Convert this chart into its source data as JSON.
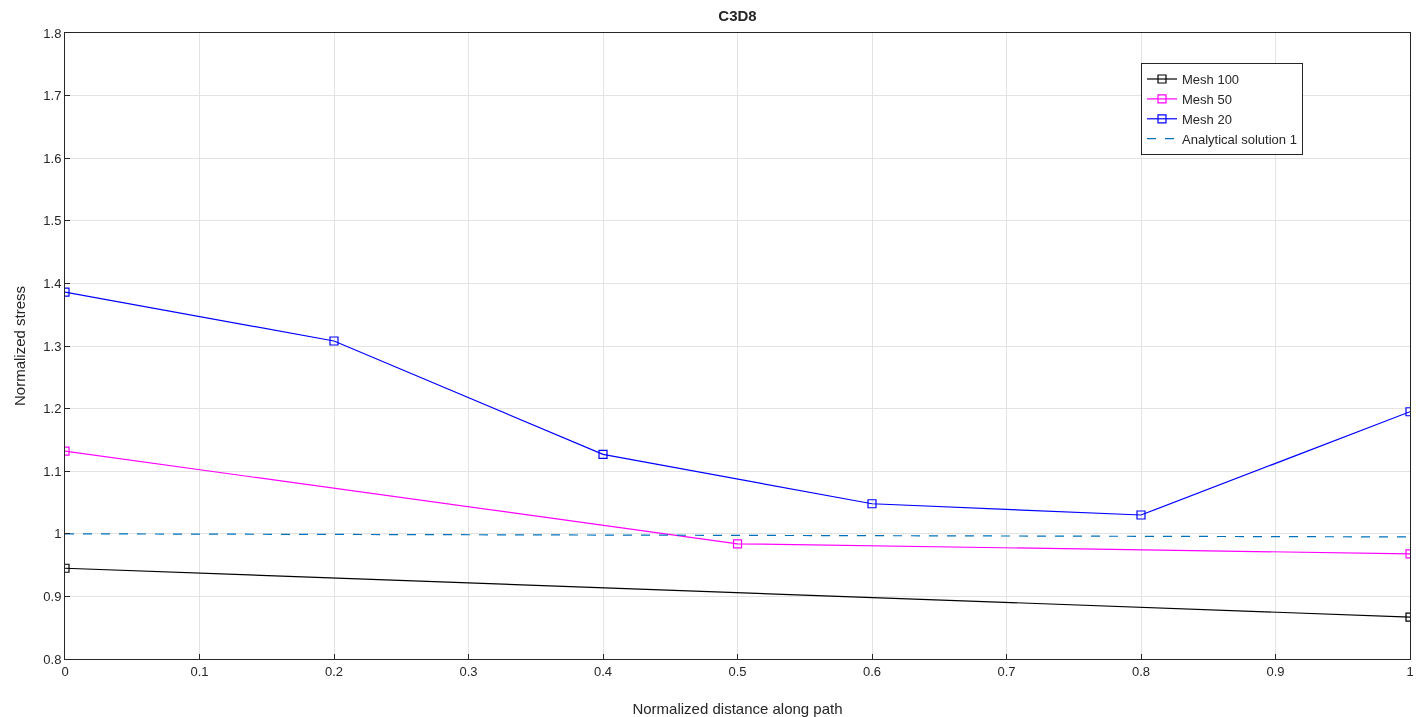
{
  "chart_data": {
    "type": "line",
    "title": "C3D8",
    "xlabel": "Normalized distance along path",
    "ylabel": "Normalized stress",
    "xlim": [
      0,
      1
    ],
    "xticks": [
      0,
      0.1,
      0.2,
      0.3,
      0.4,
      0.5,
      0.6,
      0.7,
      0.8,
      0.9,
      1
    ],
    "ylim": [
      0.8,
      1.8
    ],
    "yticks": [
      0.8,
      0.9,
      1,
      1.1,
      1.2,
      1.3,
      1.4,
      1.5,
      1.6,
      1.7,
      1.8
    ],
    "grid": true,
    "legend": "top right",
    "marker": "square",
    "line_style": "solid",
    "series": [
      {
        "name": "Mesh 100",
        "color": "#000000",
        "x": [
          0,
          1
        ],
        "values": [
          0.945,
          0.867
        ]
      },
      {
        "name": "Mesh 50",
        "color": "#ff00ff",
        "x": [
          0,
          0.5,
          1
        ],
        "values": [
          1.132,
          0.984,
          0.968
        ]
      },
      {
        "name": "Mesh 20",
        "color": "#0000ff",
        "x": [
          0,
          0.2,
          0.4,
          0.6,
          0.8,
          1
        ],
        "values": [
          1.386,
          1.308,
          1.127,
          1.048,
          1.03,
          1.195
        ]
      },
      {
        "name": "Analytical solution 1",
        "color": "#0072bd",
        "x": [
          0,
          1
        ],
        "values": [
          1,
          0.995
        ],
        "marker": "none",
        "line_style": "dashed"
      }
    ]
  }
}
